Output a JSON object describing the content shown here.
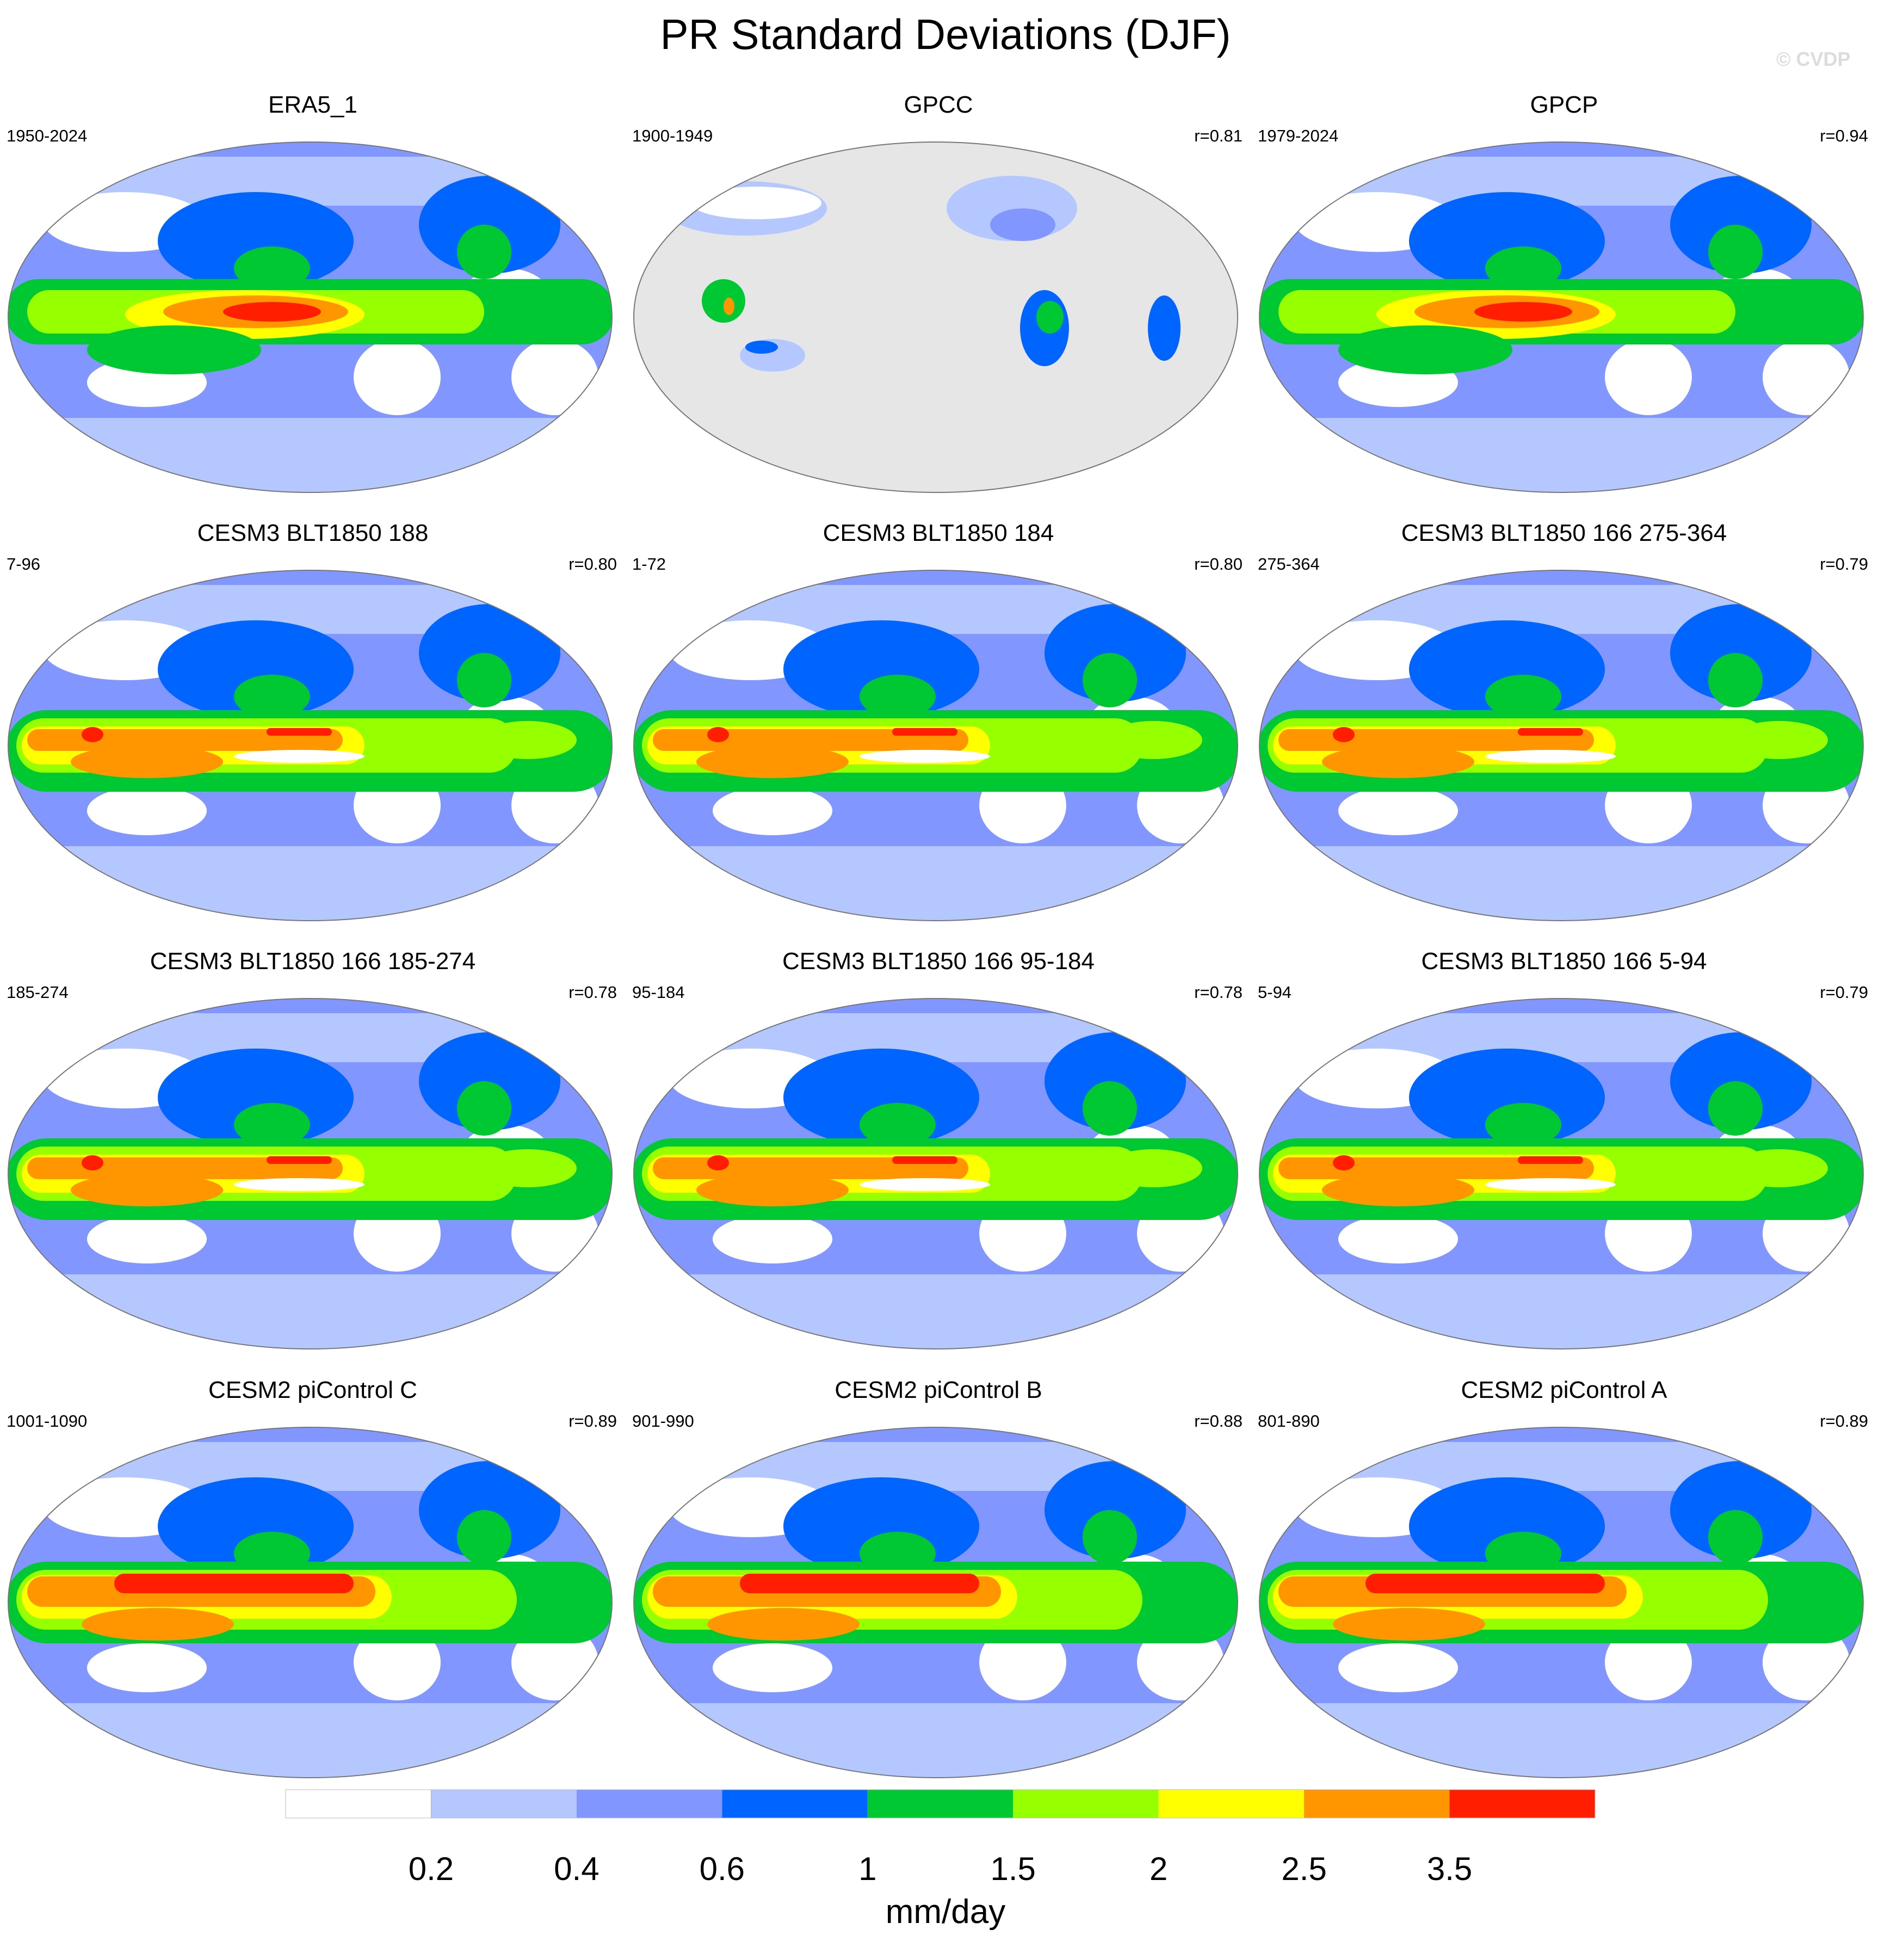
{
  "title": "PR Standard Deviations (DJF)",
  "watermark": "© CVDP",
  "panels": [
    {
      "title": "ERA5_1",
      "period": "1950-2024",
      "corr": "",
      "pattern": "era5"
    },
    {
      "title": "GPCC",
      "period": "1900-1949",
      "corr": "r=0.81",
      "pattern": "gpcc"
    },
    {
      "title": "GPCP",
      "period": "1979-2024",
      "corr": "r=0.94",
      "pattern": "gpcp"
    },
    {
      "title": "CESM3 BLT1850 188",
      "period": "7-96",
      "corr": "r=0.80",
      "pattern": "cesm3"
    },
    {
      "title": "CESM3 BLT1850 184",
      "period": "1-72",
      "corr": "r=0.80",
      "pattern": "cesm3"
    },
    {
      "title": "CESM3 BLT1850 166 275-364",
      "period": "275-364",
      "corr": "r=0.79",
      "pattern": "cesm3"
    },
    {
      "title": "CESM3 BLT1850 166 185-274",
      "period": "185-274",
      "corr": "r=0.78",
      "pattern": "cesm3"
    },
    {
      "title": "CESM3 BLT1850 166 95-184",
      "period": "95-184",
      "corr": "r=0.78",
      "pattern": "cesm3"
    },
    {
      "title": "CESM3 BLT1850 166 5-94",
      "period": "5-94",
      "corr": "r=0.79",
      "pattern": "cesm3"
    },
    {
      "title": "CESM2 piControl C",
      "period": "1001-1090",
      "corr": "r=0.89",
      "pattern": "cesm2"
    },
    {
      "title": "CESM2 piControl B",
      "period": "901-990",
      "corr": "r=0.88",
      "pattern": "cesm2"
    },
    {
      "title": "CESM2 piControl A",
      "period": "801-890",
      "corr": "r=0.89",
      "pattern": "cesm2"
    }
  ],
  "colorbar": {
    "colors": [
      "#ffffff",
      "#b4c8ff",
      "#8296ff",
      "#0064ff",
      "#00c832",
      "#96ff00",
      "#ffff00",
      "#ff9600",
      "#ff1e00"
    ],
    "labels": [
      "0.2",
      "0.4",
      "0.6",
      "1",
      "1.5",
      "2",
      "2.5",
      "3.5"
    ],
    "units": "mm/day"
  },
  "missing_color": "#e6e6e6"
}
